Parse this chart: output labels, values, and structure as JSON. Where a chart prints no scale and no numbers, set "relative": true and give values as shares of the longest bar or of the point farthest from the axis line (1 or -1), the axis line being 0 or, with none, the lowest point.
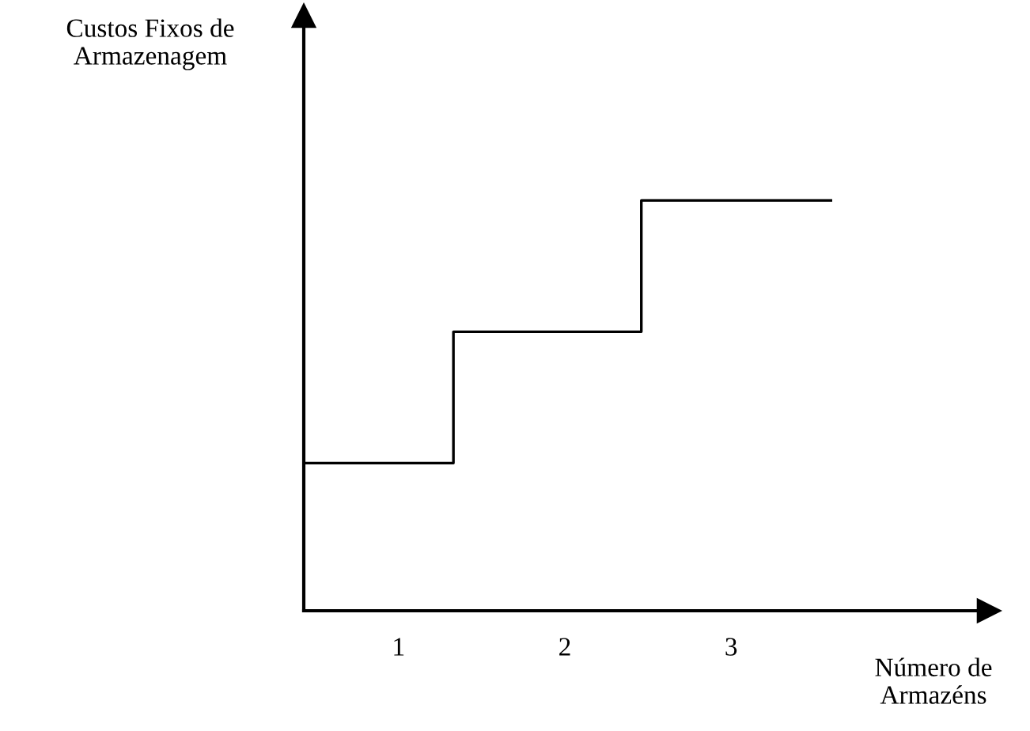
{
  "chart_data": {
    "type": "step",
    "relative": true,
    "xlabel": "Número de\nArmazéns",
    "annotations": [
      "Custos Fixos de\nArmazenagem"
    ],
    "x": [
      0.43,
      1.33,
      2.46,
      3.6
    ],
    "xlim": [
      0.43,
      4.55
    ],
    "xticks": [
      1,
      2,
      3
    ],
    "series": [
      {
        "color": "#000000",
        "values": [
          0.36,
          0.68,
          1,
          1
        ]
      }
    ],
    "grid": false,
    "legend": false,
    "line_style": "solid"
  }
}
